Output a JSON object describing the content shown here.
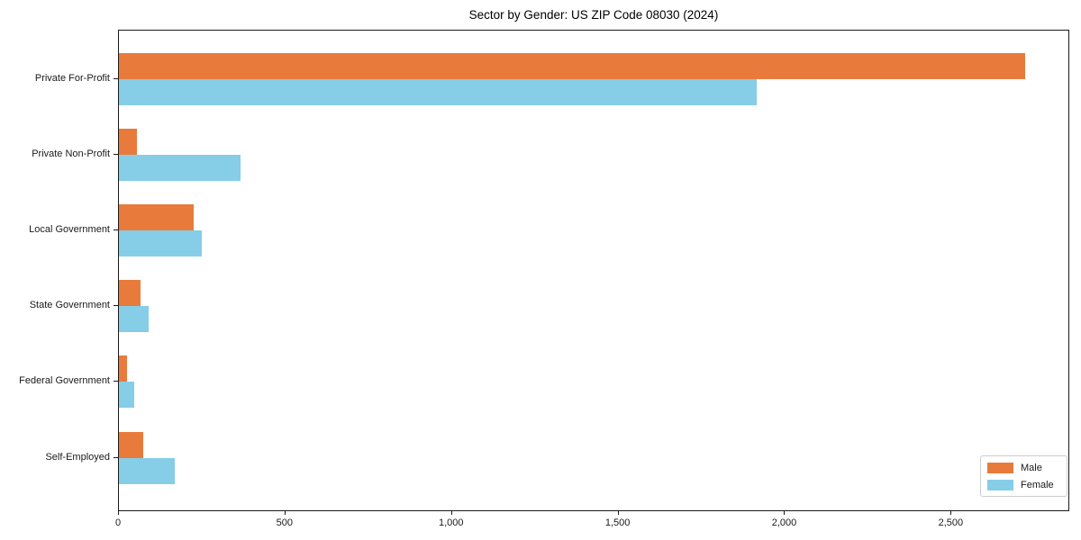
{
  "chart_data": {
    "type": "bar",
    "orientation": "horizontal",
    "title": "Sector by Gender: US ZIP Code 08030 (2024)",
    "categories": [
      "Private For-Profit",
      "Private Non-Profit",
      "Local Government",
      "State Government",
      "Federal Government",
      "Self-Employed"
    ],
    "series": [
      {
        "name": "Male",
        "color": "#e87b3c",
        "values": [
          2720,
          55,
          225,
          65,
          25,
          72
        ]
      },
      {
        "name": "Female",
        "color": "#86cde8",
        "values": [
          1915,
          365,
          248,
          90,
          47,
          168
        ]
      }
    ],
    "xlabel": "",
    "ylabel": "",
    "xlim": [
      0,
      2856
    ],
    "xticks": [
      0,
      500,
      1000,
      1500,
      2000,
      2500
    ],
    "xtick_labels": [
      "0",
      "500",
      "1,000",
      "1,500",
      "2,000",
      "2,500"
    ],
    "grid": false,
    "legend": {
      "position": "lower right",
      "entries": [
        "Male",
        "Female"
      ]
    }
  }
}
